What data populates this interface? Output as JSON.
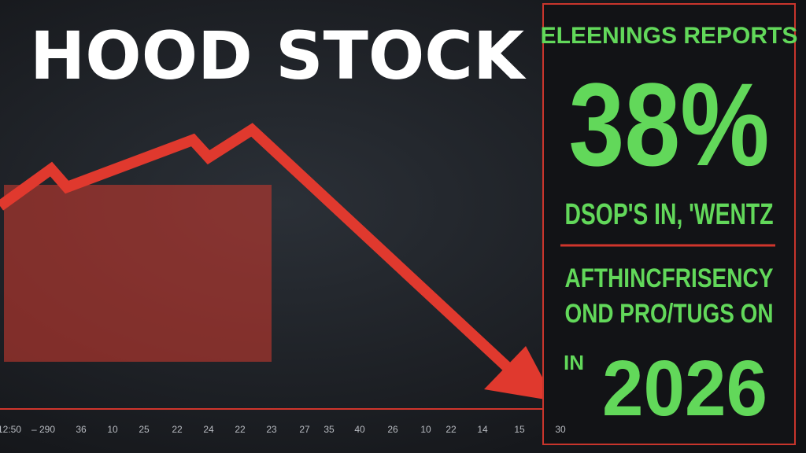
{
  "title": "HOOD STOCK",
  "panel": {
    "heading": "ELEENINGS REPORTS",
    "big_number": "38%",
    "line1": "DSOP'S IN, 'WENTZ",
    "line2": "AFTHINCFRISENCY",
    "line3": "OND PRO/TUGS ON",
    "year_prefix": "IN",
    "year": "2026"
  },
  "axis_labels": [
    "12:50",
    "– 290",
    "36",
    "10",
    "25",
    "22",
    "24",
    "22",
    "23",
    "27",
    "35",
    "40",
    "26",
    "10",
    "22",
    "14",
    "15",
    "30"
  ]
}
